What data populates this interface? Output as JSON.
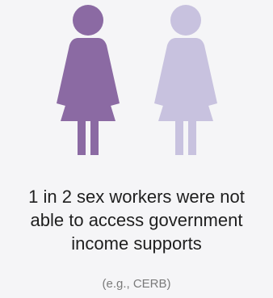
{
  "infographic": {
    "statement_lines": [
      "1 in 2 sex workers were not",
      "able to access government",
      "income supports"
    ],
    "note": "(e.g., CERB)",
    "ratio": {
      "highlighted": 1,
      "total": 2
    },
    "icons": [
      {
        "name": "woman-icon",
        "state": "highlighted",
        "color": "#8b6aa3"
      },
      {
        "name": "woman-icon",
        "state": "muted",
        "color": "#c8c2df"
      }
    ]
  }
}
